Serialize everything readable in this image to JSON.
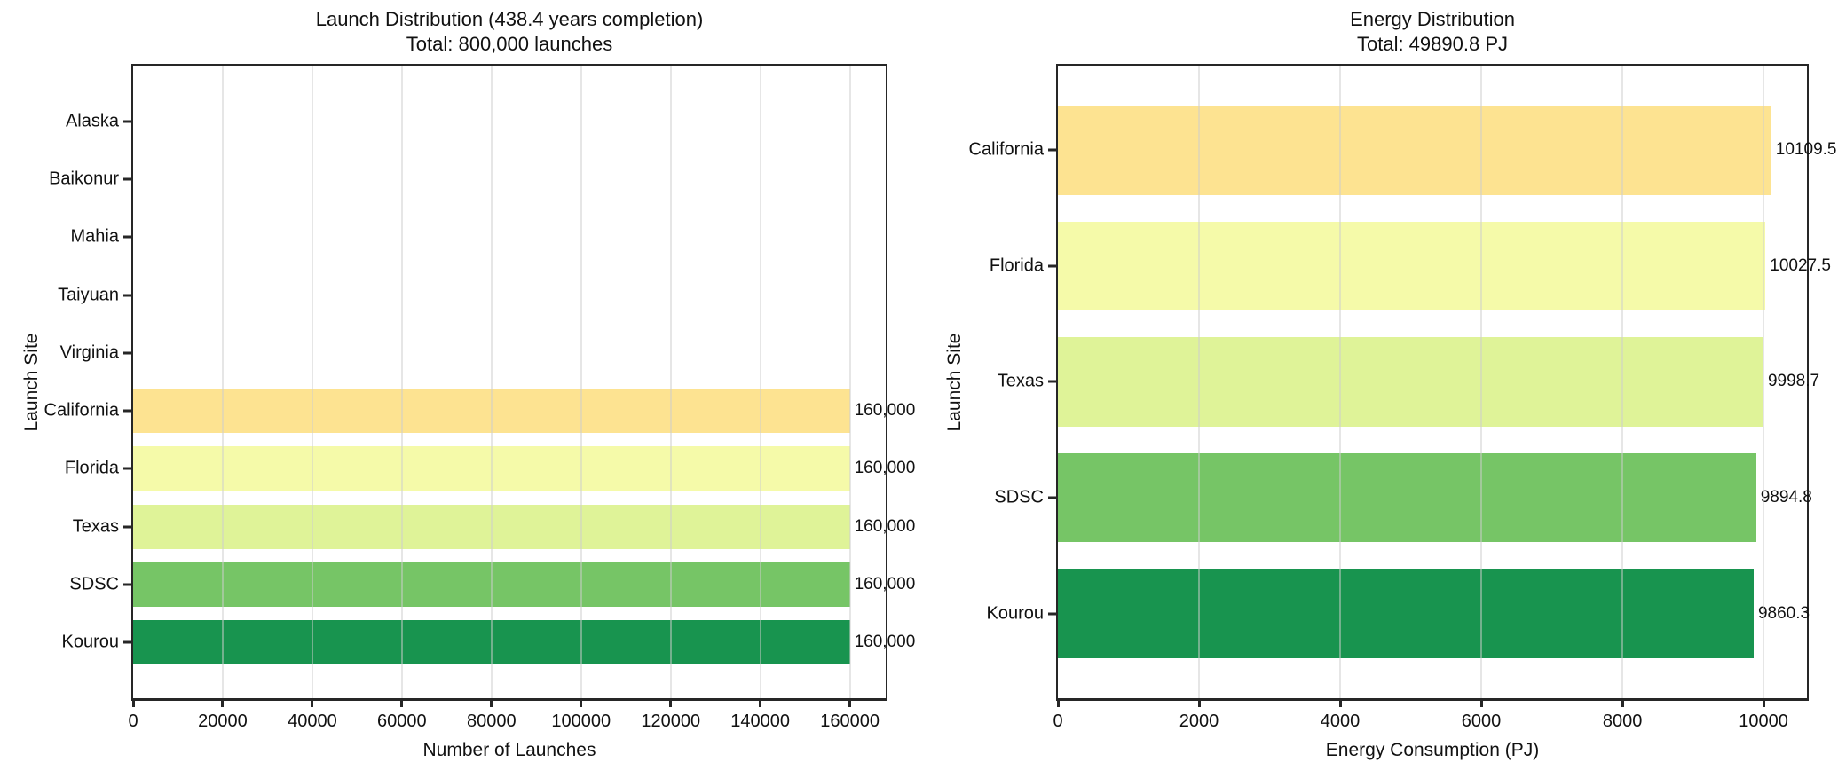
{
  "figure": {
    "background": "#ffffff",
    "text_color": "#111111"
  },
  "chart_data": [
    {
      "type": "bar",
      "orientation": "horizontal",
      "title": "Launch Distribution (438.4 years completion)",
      "subtitle": "Total: 800,000 launches",
      "xlabel": "Number of Launches",
      "ylabel": "Launch Site",
      "categories": [
        "Alaska",
        "Baikonur",
        "Mahia",
        "Taiyuan",
        "Virginia",
        "California",
        "Florida",
        "Texas",
        "SDSC",
        "Kourou"
      ],
      "values": [
        0,
        0,
        0,
        0,
        0,
        160000,
        160000,
        160000,
        160000,
        160000
      ],
      "bar_labels": [
        "",
        "",
        "",
        "",
        "",
        "160,000",
        "160,000",
        "160,000",
        "160,000",
        "160,000"
      ],
      "bar_colors": [
        "",
        "",
        "",
        "",
        "",
        "#fde391",
        "#f5faa9",
        "#dff398",
        "#76c566",
        "#18944f"
      ],
      "xlim": [
        0,
        168000
      ],
      "xticks": [
        0,
        20000,
        40000,
        60000,
        80000,
        100000,
        120000,
        140000,
        160000
      ],
      "xtick_labels": [
        "0",
        "20000",
        "40000",
        "60000",
        "80000",
        "100000",
        "120000",
        "140000",
        "160000"
      ],
      "grid": "vertical",
      "legend": null
    },
    {
      "type": "bar",
      "orientation": "horizontal",
      "title": "Energy Distribution",
      "subtitle": "Total: 49890.8 PJ",
      "xlabel": "Energy Consumption (PJ)",
      "ylabel": "Launch Site",
      "categories": [
        "California",
        "Florida",
        "Texas",
        "SDSC",
        "Kourou"
      ],
      "values": [
        10109.5,
        10027.5,
        9998.7,
        9894.8,
        9860.3
      ],
      "bar_labels": [
        "10109.5",
        "10027.5",
        "9998.7",
        "9894.8",
        "9860.3"
      ],
      "bar_colors": [
        "#fde391",
        "#f5faa9",
        "#dff398",
        "#76c566",
        "#18944f"
      ],
      "xlim": [
        0,
        10615
      ],
      "xticks": [
        0,
        2000,
        4000,
        6000,
        8000,
        10000
      ],
      "xtick_labels": [
        "0",
        "2000",
        "4000",
        "6000",
        "8000",
        "10000"
      ],
      "grid": "vertical",
      "legend": null
    }
  ]
}
